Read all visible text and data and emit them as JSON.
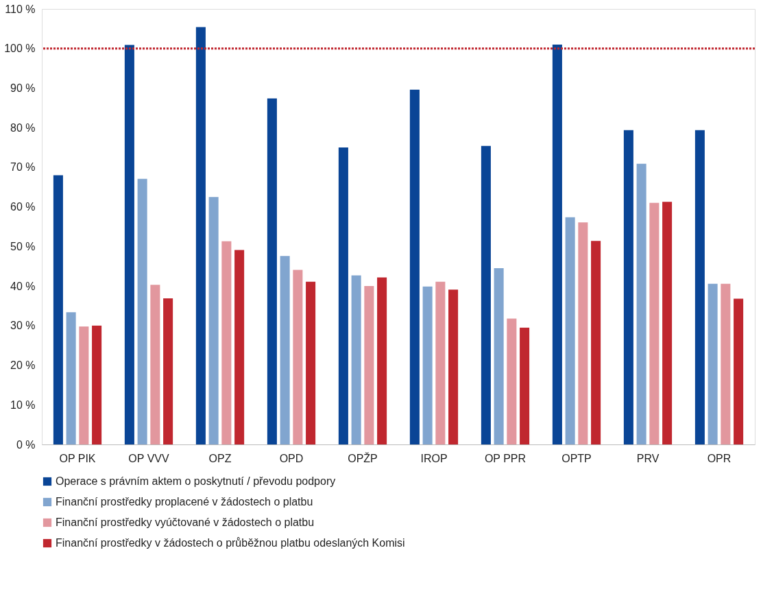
{
  "chart_data": {
    "type": "bar",
    "categories": [
      "OP PIK",
      "OP VVV",
      "OPZ",
      "OPD",
      "OPŽP",
      "IROP",
      "OP PPR",
      "OPTP",
      "PRV",
      "OPR"
    ],
    "series": [
      {
        "name": "Operace s právním aktem o poskytnutí / převodu podpory",
        "color": "#0a4596",
        "values": [
          68.0,
          100.9,
          105.4,
          87.4,
          75.0,
          89.6,
          75.4,
          101.0,
          79.4,
          79.4
        ]
      },
      {
        "name": "Finanční prostředky proplacené v žádostech o platbu",
        "color": "#81a5cf",
        "values": [
          33.4,
          67.1,
          62.5,
          47.6,
          42.7,
          39.9,
          44.5,
          57.4,
          70.9,
          40.6
        ]
      },
      {
        "name": "Finanční prostředky vyúčtované v žádostech o platbu",
        "color": "#e2979e",
        "values": [
          29.8,
          40.3,
          51.3,
          44.1,
          40.0,
          41.1,
          31.8,
          56.1,
          61.0,
          40.6
        ]
      },
      {
        "name": "Finanční prostředky v žádostech o průběžnou platbu odeslaných Komisi",
        "color": "#c0272f",
        "values": [
          30.0,
          36.9,
          49.1,
          41.1,
          42.2,
          39.1,
          29.5,
          51.4,
          61.3,
          36.8
        ]
      }
    ],
    "ylim": [
      0,
      110
    ],
    "yticks": [
      {
        "value": 0,
        "label": "0 %"
      },
      {
        "value": 10,
        "label": "10 %"
      },
      {
        "value": 20,
        "label": "20 %"
      },
      {
        "value": 30,
        "label": "30 %"
      },
      {
        "value": 40,
        "label": "40 %"
      },
      {
        "value": 50,
        "label": "50 %"
      },
      {
        "value": 60,
        "label": "60 %"
      },
      {
        "value": 70,
        "label": "70 %"
      },
      {
        "value": 80,
        "label": "80 %"
      },
      {
        "value": 90,
        "label": "90 %"
      },
      {
        "value": 100,
        "label": "100 %"
      },
      {
        "value": 110,
        "label": "110 %"
      }
    ],
    "ref_lines": [
      {
        "axis": "y",
        "value": 100,
        "color": "#c0272f",
        "line_style": "dotted"
      }
    ],
    "grid": false,
    "legend": "bottom"
  }
}
